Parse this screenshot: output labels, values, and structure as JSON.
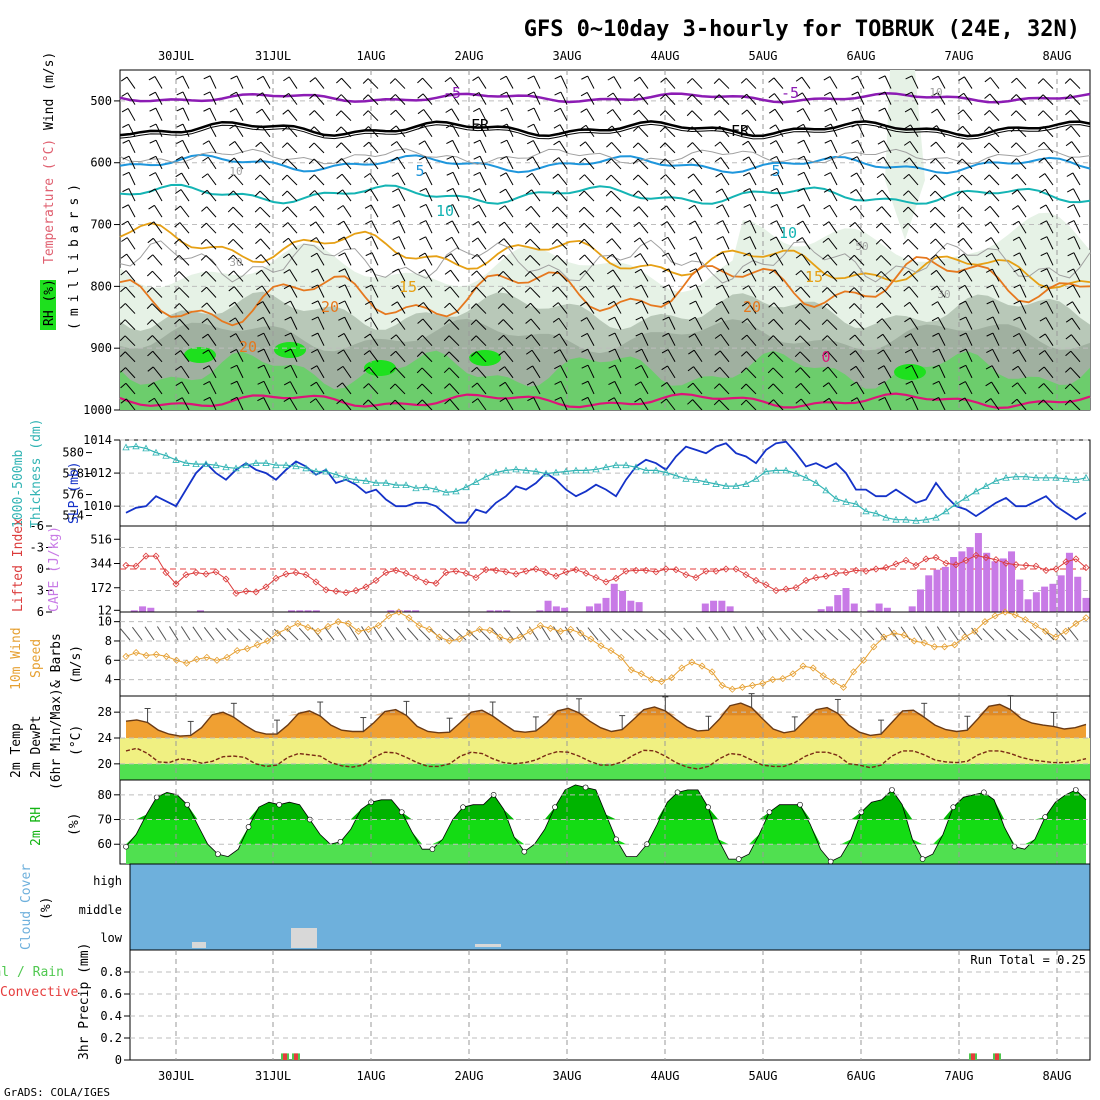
{
  "title": "GFS 0~10day 3-hourly for TOBRUK (24E, 32N)",
  "footer": "GrADS: COLA/IGES",
  "dates": [
    "30JUL",
    "31JUL",
    "1AUG",
    "2AUG",
    "3AUG",
    "4AUG",
    "5AUG",
    "6AUG",
    "7AUG",
    "8AUG"
  ],
  "colors": {
    "rh_light": "#e6f2e6",
    "rh_mid": "#b8c8b8",
    "rh_dark": "#a0b0a0",
    "rh_green": "#6ccd6c",
    "rh_bright": "#1ee01e",
    "t_purple": "#8c1cb4",
    "t_black": "#000000",
    "t_blue": "#1e96dc",
    "t_teal": "#14b4b4",
    "t_orange": "#e6a014",
    "t_darkorange": "#e6781e",
    "t_magenta": "#dc1478",
    "slp": "#1432c8",
    "thk": "#32b4b4",
    "li": "#dc3c3c",
    "cape": "#c87ae6",
    "wind10": "#e6a032",
    "temp_fill": "#f0a032",
    "dew_band": "#f0f082",
    "green_band": "#50e050",
    "rh2m_light": "#50e050",
    "rh2m_mid": "#14dc14",
    "rh2m_dark": "#00b400",
    "cloud": "#6eb0dc",
    "cloud_low": "#d8d8d8",
    "precip_total": "#50c850",
    "precip_conv": "#e63c3c"
  },
  "panels": {
    "upper": {
      "labels": [
        "RH (%)",
        "Temperature (°C)",
        "Wind (m/s)"
      ],
      "sublabel": "(millibars)",
      "yticks": [
        "500",
        "600",
        "700",
        "800",
        "900",
        "1000"
      ],
      "contour_labels": [
        "-5",
        "-5",
        "10",
        "FR",
        "FR",
        "10",
        "5",
        "5",
        "10",
        "10",
        "50",
        "30",
        "15",
        "15",
        "20",
        "20",
        "20",
        "30",
        "0"
      ]
    },
    "slp": {
      "labels_left": [
        "1000-500mb",
        "Thickness (dm)"
      ],
      "label_right": "SLP (mb)",
      "yticks_left": [
        "580",
        "578",
        "576",
        "574"
      ],
      "yticks_right": [
        "1014",
        "1012",
        "1010"
      ]
    },
    "cape": {
      "label_left": "Lifted Index",
      "label_right": "CAPE (J/kg)",
      "yticks_left": [
        "-6",
        "-3",
        "0",
        "3",
        "6"
      ],
      "yticks_right": [
        "516",
        "344",
        "172",
        "12"
      ]
    },
    "wind10": {
      "labels": [
        "10m Wind",
        "Speed",
        "& Barbs",
        "(m/s)"
      ],
      "yticks": [
        "10",
        "8",
        "6",
        "4"
      ]
    },
    "temp2m": {
      "labels": [
        "2m Temp",
        "2m DewPt",
        "(6hr Min/Max)",
        "(°C)"
      ],
      "yticks": [
        "28",
        "24",
        "20"
      ]
    },
    "rh2m": {
      "labels": [
        "2m RH",
        "(%)"
      ],
      "yticks": [
        "80",
        "70",
        "60"
      ]
    },
    "cloud": {
      "labels": [
        "Cloud Cover",
        "(%)"
      ],
      "levels": [
        "high",
        "middle",
        "low"
      ]
    },
    "precip": {
      "labels": [
        "Total / Rain",
        "Convective",
        "3hr Precip (mm)"
      ],
      "yticks": [
        "0.8",
        "0.6",
        "0.4",
        "0.2",
        "0"
      ],
      "run_total": "Run Total = 0.25"
    }
  },
  "chart_data": [
    {
      "type": "line",
      "name": "slp",
      "ylabel": "SLP (mb)",
      "ylim": [
        1008.8,
        1014
      ],
      "values": [
        1009.6,
        1009.9,
        1010.0,
        1010.6,
        1010.3,
        1010.0,
        1011.0,
        1012.0,
        1012.6,
        1012.0,
        1011.6,
        1012.2,
        1012.6,
        1012.2,
        1012.0,
        1011.6,
        1012.2,
        1012.7,
        1012.4,
        1011.9,
        1012.2,
        1011.4,
        1011.6,
        1011.3,
        1010.8,
        1011.0,
        1010.4,
        1010.0,
        1010.0,
        1010.2,
        1010.2,
        1010.0,
        1009.5,
        1009.0,
        1009.0,
        1009.8,
        1009.6,
        1010.2,
        1010.6,
        1011.2,
        1011.0,
        1011.4,
        1012.0,
        1011.6,
        1011.0,
        1010.6,
        1010.9,
        1011.3,
        1011.0,
        1010.6,
        1011.6,
        1012.4,
        1012.8,
        1012.6,
        1012.2,
        1013.0,
        1013.6,
        1013.4,
        1013.2,
        1013.6,
        1013.8,
        1013.2,
        1013.0,
        1012.6,
        1013.4,
        1013.8,
        1013.9,
        1013.2,
        1012.4,
        1012.6,
        1012.3,
        1012.6,
        1012.0,
        1011.0,
        1011.0,
        1010.6,
        1010.6,
        1011.0,
        1010.6,
        1010.2,
        1010.4,
        1011.4,
        1010.6,
        1010.0,
        1009.8,
        1009.4,
        1009.8,
        1010.2,
        1010.5,
        1010.0,
        1010.0,
        1010.3,
        1010.6,
        1010.0,
        1009.6,
        1009.2,
        1009.6
      ],
      "min_max_axis": [
        "1014",
        "1012",
        "1010"
      ]
    },
    {
      "type": "line",
      "name": "thickness",
      "ylabel": "1000-500mb Thickness (dm)",
      "ylim": [
        573,
        581.2
      ],
      "values": [
        580.5,
        580.6,
        580.4,
        580.0,
        579.7,
        579.3,
        579.0,
        578.9,
        578.9,
        578.8,
        578.6,
        578.5,
        578.8,
        579.0,
        579.0,
        578.8,
        578.8,
        578.7,
        578.5,
        578.2,
        578.2,
        577.9,
        577.6,
        577.4,
        577.3,
        577.1,
        577.1,
        576.9,
        576.9,
        576.6,
        576.7,
        576.5,
        576.2,
        576.3,
        576.7,
        577.2,
        577.7,
        578.1,
        578.3,
        578.4,
        578.3,
        578.2,
        578.0,
        578.1,
        578.2,
        578.3,
        578.3,
        578.4,
        578.6,
        578.8,
        578.8,
        578.6,
        578.3,
        578.3,
        578.1,
        577.8,
        577.5,
        577.4,
        577.2,
        577.0,
        576.8,
        576.8,
        577.0,
        577.5,
        578.2,
        578.3,
        578.3,
        578.0,
        577.6,
        577.1,
        576.4,
        575.6,
        575.3,
        575.1,
        574.4,
        574.2,
        573.8,
        573.6,
        573.6,
        573.5,
        573.6,
        573.8,
        574.4,
        575.1,
        575.7,
        576.3,
        576.8,
        577.3,
        577.6,
        577.7,
        577.7,
        577.6,
        577.6,
        577.6,
        577.5,
        577.4,
        577.6
      ]
    },
    {
      "type": "line",
      "name": "lifted_index",
      "ylabel": "Lifted Index",
      "ylim": [
        6,
        -6
      ],
      "values": [
        -0.5,
        -0.4,
        -1.8,
        -1.8,
        0.5,
        2.1,
        0.8,
        0.5,
        0.7,
        0.4,
        1.4,
        3.4,
        3.1,
        3.2,
        2.5,
        1.3,
        0.7,
        0.5,
        0.8,
        1.8,
        2.9,
        3.1,
        3.3,
        3.0,
        2.5,
        1.6,
        0.5,
        0.2,
        0.6,
        1.2,
        1.8,
        2.0,
        0.5,
        0.3,
        0.6,
        1.2,
        0.1,
        0.2,
        0.4,
        0.7,
        0.3,
        0.0,
        0.5,
        1.0,
        0.4,
        0.1,
        0.6,
        1.2,
        1.8,
        1.3,
        0.3,
        0.2,
        0.2,
        0.4,
        0.0,
        0.1,
        0.8,
        1.2,
        0.3,
        0.3,
        0.0,
        0.0,
        0.8,
        1.6,
        2.2,
        3.0,
        2.8,
        2.6,
        1.6,
        1.2,
        1.0,
        0.6,
        0.5,
        0.2,
        0.3,
        0.0,
        -0.2,
        -0.7,
        -1.2,
        -0.5,
        -1.4,
        -1.6,
        -0.8,
        -0.6,
        -1.2,
        -1.9,
        -1.6,
        -1.3,
        -0.8,
        -0.6,
        -0.5,
        -0.4,
        0.2,
        0.0,
        -1.0,
        -1.4,
        -0.2
      ]
    },
    {
      "type": "bar",
      "name": "cape",
      "ylabel": "CAPE (J/kg)",
      "ylim": [
        12,
        610
      ],
      "values": [
        0,
        12,
        40,
        30,
        12,
        0,
        0,
        0,
        0,
        20,
        0,
        0,
        0,
        0,
        0,
        0,
        0,
        0,
        0,
        0,
        12,
        12,
        0,
        0,
        0,
        0,
        12,
        12,
        12,
        0,
        0,
        10,
        30,
        70,
        60,
        40,
        12,
        0,
        12,
        20,
        40,
        70,
        60,
        90,
        140,
        100,
        60,
        50,
        12,
        0,
        12,
        0,
        60,
        90,
        80,
        40,
        12,
        0,
        0,
        0,
        0,
        0,
        0,
        0,
        0,
        0,
        20,
        50,
        170,
        100,
        12,
        0,
        12,
        70,
        40,
        12,
        0,
        12,
        0,
        0,
        0,
        0,
        0,
        0,
        0,
        0,
        0,
        0,
        0,
        0,
        0,
        0,
        0,
        0,
        0,
        0
      ],
      "cape_series": [
        0,
        12,
        40,
        30,
        0,
        0,
        0,
        0,
        0,
        12,
        0,
        0,
        0,
        0,
        0,
        0,
        0,
        0,
        0,
        0,
        12,
        12,
        12,
        12,
        0,
        0,
        0,
        0,
        0,
        0,
        0,
        0,
        12,
        12,
        12,
        12,
        0,
        0,
        0,
        0,
        0,
        0,
        0,
        0,
        12,
        12,
        12,
        0,
        0,
        0,
        12,
        80,
        40,
        30,
        0,
        0,
        40,
        60,
        100,
        200,
        150,
        80,
        70,
        0,
        0,
        0,
        0,
        0,
        0,
        0,
        60,
        80,
        80,
        40,
        0,
        0,
        0,
        0,
        0,
        0,
        0,
        0,
        0,
        0,
        20,
        40,
        120,
        170,
        60,
        0,
        12,
        60,
        30,
        0,
        0,
        40,
        160,
        260,
        300,
        320,
        390,
        430,
        460,
        560,
        420,
        360,
        380,
        430,
        230,
        90,
        140,
        180,
        200,
        260,
        420,
        250,
        100
      ]
    },
    {
      "type": "line",
      "name": "wind10m_speed",
      "ylabel": "10m Wind Speed (m/s)",
      "ylim": [
        2.3,
        11
      ],
      "values": [
        6.4,
        6.8,
        6.5,
        6.6,
        6.4,
        6.0,
        5.7,
        6.1,
        6.3,
        6.0,
        6.3,
        7.0,
        7.2,
        7.6,
        8.0,
        8.8,
        9.3,
        9.8,
        9.4,
        9.0,
        9.5,
        10.0,
        9.8,
        9.0,
        9.2,
        9.6,
        10.6,
        11.0,
        10.4,
        9.6,
        9.2,
        8.4,
        8.0,
        8.2,
        8.8,
        9.2,
        9.1,
        8.4,
        8.1,
        8.4,
        9.0,
        9.6,
        9.3,
        9.0,
        9.2,
        8.8,
        8.2,
        7.5,
        7.0,
        6.3,
        5.0,
        4.6,
        4.0,
        3.8,
        4.2,
        5.2,
        5.8,
        5.4,
        4.8,
        3.4,
        3.0,
        3.2,
        3.4,
        3.6,
        4.0,
        4.1,
        4.6,
        5.4,
        5.2,
        4.4,
        3.8,
        3.2,
        4.8,
        6.0,
        7.4,
        8.4,
        8.8,
        8.6,
        8.0,
        7.8,
        7.4,
        7.4,
        7.6,
        8.4,
        9.0,
        10.0,
        10.6,
        11.0,
        10.7,
        10.2,
        9.6,
        9.0,
        8.4,
        9.0,
        9.8,
        10.4
      ]
    },
    {
      "type": "area",
      "name": "temp2m",
      "ylabel": "2m Temp (°C)",
      "ylim": [
        17.5,
        30.5
      ],
      "values": [
        26.6,
        26.8,
        26.4,
        25.2,
        24.6,
        24.3,
        24.4,
        25.6,
        27.6,
        28.0,
        27.2,
        26.0,
        25.0,
        24.6,
        24.6,
        26.0,
        27.8,
        28.2,
        27.4,
        26.0,
        25.2,
        25.0,
        25.0,
        26.4,
        28.1,
        28.4,
        27.5,
        25.8,
        25.0,
        24.8,
        24.9,
        26.4,
        28.0,
        28.3,
        27.4,
        26.2,
        25.1,
        24.9,
        25.1,
        26.4,
        28.2,
        28.6,
        27.9,
        26.6,
        25.6,
        25.0,
        25.3,
        26.8,
        28.4,
        28.8,
        28.2,
        26.9,
        25.7,
        25.1,
        25.2,
        26.9,
        29.0,
        29.4,
        28.7,
        27.0,
        25.4,
        24.8,
        25.1,
        26.8,
        28.4,
        28.7,
        27.8,
        26.0,
        24.9,
        24.4,
        24.6,
        26.4,
        28.2,
        28.3,
        27.2,
        26.0,
        25.3,
        25.0,
        25.2,
        27.0,
        28.9,
        29.2,
        28.4,
        27.0,
        26.3,
        26.0,
        25.8,
        25.4,
        25.6,
        26.1
      ],
      "dewpoint": [
        22.0,
        22.4,
        21.6,
        20.3,
        20.2,
        20.8,
        20.6,
        20.1,
        20.4,
        21.1,
        21.2,
        21.0,
        20.0,
        19.6,
        19.8,
        21.0,
        21.6,
        21.4,
        21.2,
        20.2,
        19.7,
        19.5,
        19.8,
        21.0,
        21.8,
        21.7,
        21.0,
        20.2,
        19.6,
        19.6,
        20.0,
        21.2,
        21.8,
        21.6,
        20.8,
        20.2,
        20.0,
        20.2,
        20.6,
        21.4,
        21.9,
        21.8,
        21.2,
        20.4,
        19.8,
        19.8,
        20.3,
        21.3,
        22.1,
        22.0,
        21.2,
        20.2,
        19.5,
        19.2,
        19.6,
        20.8,
        21.6,
        21.4,
        20.6,
        19.8,
        19.6,
        19.6,
        20.2,
        21.2,
        21.8,
        21.8,
        21.3,
        20.0,
        19.8,
        19.4,
        19.8,
        21.2,
        22.0,
        22.0,
        21.4,
        20.6,
        20.3,
        20.2,
        20.4,
        21.4,
        22.0,
        22.0,
        21.6,
        21.0,
        20.6,
        20.4,
        20.2,
        20.2,
        20.4,
        20.8
      ]
    },
    {
      "type": "area",
      "name": "rh2m",
      "ylabel": "2m RH (%)",
      "ylim": [
        52,
        86
      ],
      "values": [
        59,
        64,
        72,
        79,
        81,
        80,
        76,
        68,
        60,
        56,
        55,
        58,
        67,
        75,
        77,
        76,
        77,
        76,
        70,
        64,
        60,
        61,
        66,
        74,
        77,
        78,
        78,
        73,
        65,
        58,
        58,
        62,
        70,
        75,
        76,
        76,
        80,
        74,
        63,
        57,
        60,
        66,
        75,
        82,
        84,
        83,
        82,
        72,
        62,
        55,
        55,
        60,
        68,
        77,
        81,
        82,
        82,
        75,
        62,
        54,
        54,
        56,
        64,
        73,
        76,
        76,
        76,
        68,
        58,
        53,
        55,
        62,
        73,
        77,
        78,
        82,
        76,
        62,
        54,
        56,
        64,
        75,
        79,
        80,
        81,
        78,
        67,
        59,
        58,
        62,
        71,
        77,
        80,
        82,
        78
      ]
    },
    {
      "type": "bar",
      "name": "cloud_low",
      "ylabel": "Cloud Cover (%)",
      "values": [
        0,
        0,
        0,
        0,
        0,
        0,
        0,
        0,
        3,
        3,
        0,
        0,
        0,
        0,
        0,
        0,
        0,
        0,
        0,
        0,
        12,
        12,
        12,
        0,
        0,
        0,
        0,
        0,
        0,
        0,
        0,
        0,
        0,
        0,
        0,
        0,
        0,
        0,
        0,
        0,
        0,
        0,
        0,
        0,
        1,
        1,
        1,
        0,
        0,
        0,
        0,
        0,
        0,
        0,
        0,
        0,
        0,
        0,
        0,
        0,
        0,
        0,
        0,
        0,
        0,
        0,
        0,
        0,
        0,
        0,
        0,
        0,
        0,
        0,
        0,
        0,
        0,
        0,
        0,
        0,
        0,
        0,
        0,
        0,
        0,
        0,
        0,
        0,
        0,
        0
      ]
    },
    {
      "type": "bar",
      "name": "precip3hr",
      "ylabel": "3hr Precip (mm)",
      "ylim": [
        0,
        1
      ],
      "precip_days": [
        31.1,
        31.2,
        38.3,
        38.6
      ],
      "values": [
        0.05,
        0.05,
        0.05,
        0.05
      ]
    }
  ]
}
